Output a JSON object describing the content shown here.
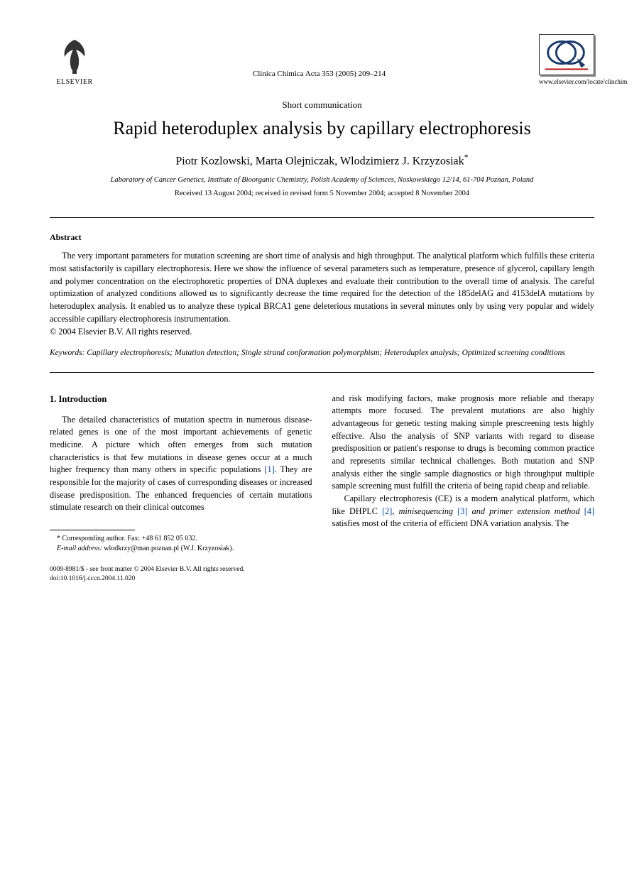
{
  "publisher": {
    "name": "ELSEVIER"
  },
  "journal": {
    "citation": "Clinica Chimica Acta 353 (2005) 209–214",
    "url": "www.elsevier.com/locate/clinchim",
    "logo_letters": "CCA"
  },
  "article": {
    "type": "Short communication",
    "title": "Rapid heteroduplex analysis by capillary electrophoresis",
    "authors": "Piotr Kozlowski, Marta Olejniczak, Wlodzimierz J. Krzyzosiak",
    "corresponding_marker": "*",
    "affiliation": "Laboratory of Cancer Genetics, Institute of Bioorganic Chemistry, Polish Academy of Sciences, Noskowskiego 12/14, 61-704 Poznan, Poland",
    "dates": "Received 13 August 2004; received in revised form 5 November 2004; accepted 8 November 2004"
  },
  "abstract": {
    "heading": "Abstract",
    "body": "The very important parameters for mutation screening are short time of analysis and high throughput. The analytical platform which fulfills these criteria most satisfactorily is capillary electrophoresis. Here we show the influence of several parameters such as temperature, presence of glycerol, capillary length and polymer concentration on the electrophoretic properties of DNA duplexes and evaluate their contribution to the overall time of analysis. The careful optimization of analyzed conditions allowed us to significantly decrease the time required for the detection of the 185delAG and 4153delA mutations by heteroduplex analysis. It enabled us to analyze these typical BRCA1 gene deleterious mutations in several minutes only by using very popular and widely accessible capillary electrophoresis instrumentation.",
    "copyright": "© 2004 Elsevier B.V. All rights reserved."
  },
  "keywords": {
    "label": "Keywords:",
    "text": "Capillary electrophoresis; Mutation detection; Single strand conformation polymorphism; Heteroduplex analysis; Optimized screening conditions"
  },
  "intro": {
    "heading": "1. Introduction",
    "col1": "The detailed characteristics of mutation spectra in numerous disease-related genes is one of the most important achievements of genetic medicine. A picture which often emerges from such mutation characteristics is that few mutations in disease genes occur at a much higher frequency than many others in specific populations [1]. They are responsible for the majority of cases of corresponding diseases or increased disease predisposition. The enhanced frequencies of certain mutations stimulate research on their clinical outcomes",
    "col2a": "and risk modifying factors, make prognosis more reliable and therapy attempts more focused. The prevalent mutations are also highly advantageous for genetic testing making simple prescreening tests highly effective. Also the analysis of SNP variants with regard to disease predisposition or patient's response to drugs is becoming common practice and represents similar technical challenges. Both mutation and SNP analysis either the single sample diagnostics or high throughput multiple sample screening must fulfill the criteria of being rapid cheap and reliable.",
    "col2b_pre": "Capillary electrophoresis (CE) is a modern analytical platform, which like DHPLC ",
    "col2b_ref2": "[2]",
    "col2b_mid1": ", ",
    "col2b_ital1": "minisequencing",
    "col2b_mid2": " ",
    "col2b_ref3": "[3]",
    "col2b_mid3": " ",
    "col2b_ital2": "and primer extension method",
    "col2b_mid4": " ",
    "col2b_ref4": "[4]",
    "col2b_post": " satisfies most of the criteria of efficient DNA variation analysis. The"
  },
  "footnotes": {
    "corr": "* Corresponding author. Fax: +48 61 852 05 032.",
    "email_label": "E-mail address:",
    "email": "wlodkrzy@man.poznan.pl (W.J. Krzyzosiak)."
  },
  "footer": {
    "line1": "0009-8981/$ - see front matter © 2004 Elsevier B.V. All rights reserved.",
    "line2": "doi:10.1016/j.cccn.2004.11.020"
  },
  "colors": {
    "text": "#000000",
    "link": "#0645ad",
    "bg": "#ffffff"
  }
}
